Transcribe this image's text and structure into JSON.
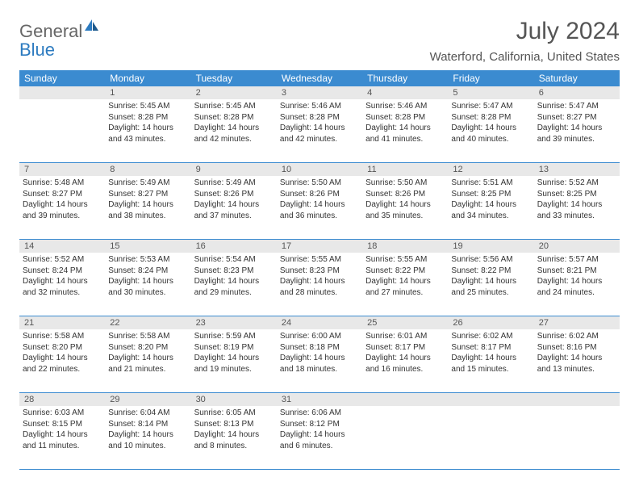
{
  "logo": {
    "text1": "General",
    "text2": "Blue"
  },
  "title": "July 2024",
  "location": "Waterford, California, United States",
  "header_bg": "#3b8bd0",
  "dow": [
    "Sunday",
    "Monday",
    "Tuesday",
    "Wednesday",
    "Thursday",
    "Friday",
    "Saturday"
  ],
  "weeks": [
    [
      {
        "n": "",
        "sr": "",
        "ss": "",
        "dl": ""
      },
      {
        "n": "1",
        "sr": "Sunrise: 5:45 AM",
        "ss": "Sunset: 8:28 PM",
        "dl": "Daylight: 14 hours and 43 minutes."
      },
      {
        "n": "2",
        "sr": "Sunrise: 5:45 AM",
        "ss": "Sunset: 8:28 PM",
        "dl": "Daylight: 14 hours and 42 minutes."
      },
      {
        "n": "3",
        "sr": "Sunrise: 5:46 AM",
        "ss": "Sunset: 8:28 PM",
        "dl": "Daylight: 14 hours and 42 minutes."
      },
      {
        "n": "4",
        "sr": "Sunrise: 5:46 AM",
        "ss": "Sunset: 8:28 PM",
        "dl": "Daylight: 14 hours and 41 minutes."
      },
      {
        "n": "5",
        "sr": "Sunrise: 5:47 AM",
        "ss": "Sunset: 8:28 PM",
        "dl": "Daylight: 14 hours and 40 minutes."
      },
      {
        "n": "6",
        "sr": "Sunrise: 5:47 AM",
        "ss": "Sunset: 8:27 PM",
        "dl": "Daylight: 14 hours and 39 minutes."
      }
    ],
    [
      {
        "n": "7",
        "sr": "Sunrise: 5:48 AM",
        "ss": "Sunset: 8:27 PM",
        "dl": "Daylight: 14 hours and 39 minutes."
      },
      {
        "n": "8",
        "sr": "Sunrise: 5:49 AM",
        "ss": "Sunset: 8:27 PM",
        "dl": "Daylight: 14 hours and 38 minutes."
      },
      {
        "n": "9",
        "sr": "Sunrise: 5:49 AM",
        "ss": "Sunset: 8:26 PM",
        "dl": "Daylight: 14 hours and 37 minutes."
      },
      {
        "n": "10",
        "sr": "Sunrise: 5:50 AM",
        "ss": "Sunset: 8:26 PM",
        "dl": "Daylight: 14 hours and 36 minutes."
      },
      {
        "n": "11",
        "sr": "Sunrise: 5:50 AM",
        "ss": "Sunset: 8:26 PM",
        "dl": "Daylight: 14 hours and 35 minutes."
      },
      {
        "n": "12",
        "sr": "Sunrise: 5:51 AM",
        "ss": "Sunset: 8:25 PM",
        "dl": "Daylight: 14 hours and 34 minutes."
      },
      {
        "n": "13",
        "sr": "Sunrise: 5:52 AM",
        "ss": "Sunset: 8:25 PM",
        "dl": "Daylight: 14 hours and 33 minutes."
      }
    ],
    [
      {
        "n": "14",
        "sr": "Sunrise: 5:52 AM",
        "ss": "Sunset: 8:24 PM",
        "dl": "Daylight: 14 hours and 32 minutes."
      },
      {
        "n": "15",
        "sr": "Sunrise: 5:53 AM",
        "ss": "Sunset: 8:24 PM",
        "dl": "Daylight: 14 hours and 30 minutes."
      },
      {
        "n": "16",
        "sr": "Sunrise: 5:54 AM",
        "ss": "Sunset: 8:23 PM",
        "dl": "Daylight: 14 hours and 29 minutes."
      },
      {
        "n": "17",
        "sr": "Sunrise: 5:55 AM",
        "ss": "Sunset: 8:23 PM",
        "dl": "Daylight: 14 hours and 28 minutes."
      },
      {
        "n": "18",
        "sr": "Sunrise: 5:55 AM",
        "ss": "Sunset: 8:22 PM",
        "dl": "Daylight: 14 hours and 27 minutes."
      },
      {
        "n": "19",
        "sr": "Sunrise: 5:56 AM",
        "ss": "Sunset: 8:22 PM",
        "dl": "Daylight: 14 hours and 25 minutes."
      },
      {
        "n": "20",
        "sr": "Sunrise: 5:57 AM",
        "ss": "Sunset: 8:21 PM",
        "dl": "Daylight: 14 hours and 24 minutes."
      }
    ],
    [
      {
        "n": "21",
        "sr": "Sunrise: 5:58 AM",
        "ss": "Sunset: 8:20 PM",
        "dl": "Daylight: 14 hours and 22 minutes."
      },
      {
        "n": "22",
        "sr": "Sunrise: 5:58 AM",
        "ss": "Sunset: 8:20 PM",
        "dl": "Daylight: 14 hours and 21 minutes."
      },
      {
        "n": "23",
        "sr": "Sunrise: 5:59 AM",
        "ss": "Sunset: 8:19 PM",
        "dl": "Daylight: 14 hours and 19 minutes."
      },
      {
        "n": "24",
        "sr": "Sunrise: 6:00 AM",
        "ss": "Sunset: 8:18 PM",
        "dl": "Daylight: 14 hours and 18 minutes."
      },
      {
        "n": "25",
        "sr": "Sunrise: 6:01 AM",
        "ss": "Sunset: 8:17 PM",
        "dl": "Daylight: 14 hours and 16 minutes."
      },
      {
        "n": "26",
        "sr": "Sunrise: 6:02 AM",
        "ss": "Sunset: 8:17 PM",
        "dl": "Daylight: 14 hours and 15 minutes."
      },
      {
        "n": "27",
        "sr": "Sunrise: 6:02 AM",
        "ss": "Sunset: 8:16 PM",
        "dl": "Daylight: 14 hours and 13 minutes."
      }
    ],
    [
      {
        "n": "28",
        "sr": "Sunrise: 6:03 AM",
        "ss": "Sunset: 8:15 PM",
        "dl": "Daylight: 14 hours and 11 minutes."
      },
      {
        "n": "29",
        "sr": "Sunrise: 6:04 AM",
        "ss": "Sunset: 8:14 PM",
        "dl": "Daylight: 14 hours and 10 minutes."
      },
      {
        "n": "30",
        "sr": "Sunrise: 6:05 AM",
        "ss": "Sunset: 8:13 PM",
        "dl": "Daylight: 14 hours and 8 minutes."
      },
      {
        "n": "31",
        "sr": "Sunrise: 6:06 AM",
        "ss": "Sunset: 8:12 PM",
        "dl": "Daylight: 14 hours and 6 minutes."
      },
      {
        "n": "",
        "sr": "",
        "ss": "",
        "dl": ""
      },
      {
        "n": "",
        "sr": "",
        "ss": "",
        "dl": ""
      },
      {
        "n": "",
        "sr": "",
        "ss": "",
        "dl": ""
      }
    ]
  ]
}
